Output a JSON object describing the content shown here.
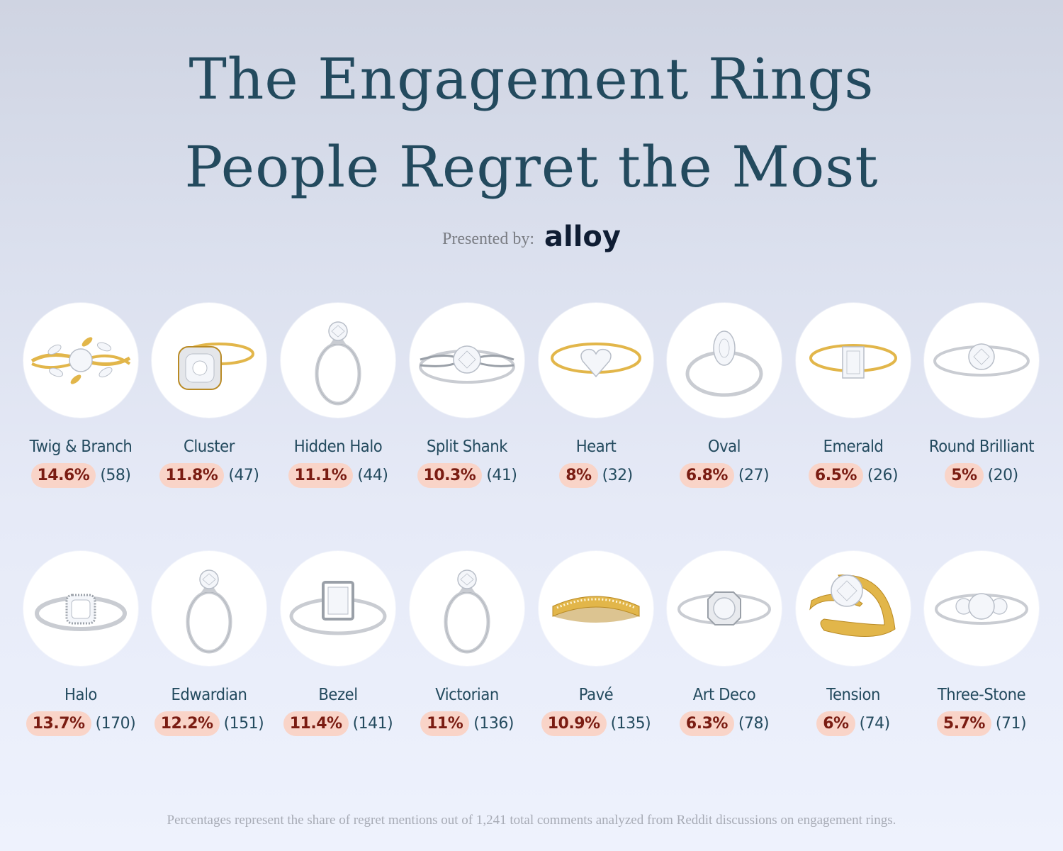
{
  "title": {
    "line1": "The Engagement Rings",
    "line2": "People Regret the Most"
  },
  "presented": {
    "label": "Presented by:",
    "brand": "alloy"
  },
  "colors": {
    "title": "#234a5e",
    "badge_bg": "#f9d4c8",
    "badge_text": "#7a1c12",
    "gold": "#e2b64a",
    "silver": "#c9ccd2"
  },
  "rows": [
    {
      "items": [
        {
          "name": "Twig & Branch",
          "percent": "14.6%",
          "count": "(58)",
          "metal": "gold",
          "style": "twig"
        },
        {
          "name": "Cluster",
          "percent": "11.8%",
          "count": "(47)",
          "metal": "gold",
          "style": "cluster"
        },
        {
          "name": "Hidden Halo",
          "percent": "11.1%",
          "count": "(44)",
          "metal": "silver",
          "style": "solitaire-upright"
        },
        {
          "name": "Split Shank",
          "percent": "10.3%",
          "count": "(41)",
          "metal": "silver",
          "style": "split"
        },
        {
          "name": "Heart",
          "percent": "8%",
          "count": "(32)",
          "metal": "gold",
          "style": "heart"
        },
        {
          "name": "Oval",
          "percent": "6.8%",
          "count": "(27)",
          "metal": "silver",
          "style": "oval"
        },
        {
          "name": "Emerald",
          "percent": "6.5%",
          "count": "(26)",
          "metal": "gold",
          "style": "emerald"
        },
        {
          "name": "Round Brilliant",
          "percent": "5%",
          "count": "(20)",
          "metal": "silver",
          "style": "round"
        }
      ]
    },
    {
      "items": [
        {
          "name": "Halo",
          "percent": "13.7%",
          "count": "(170)",
          "metal": "silver",
          "style": "halo"
        },
        {
          "name": "Edwardian",
          "percent": "12.2%",
          "count": "(151)",
          "metal": "silver",
          "style": "solitaire-upright"
        },
        {
          "name": "Bezel",
          "percent": "11.4%",
          "count": "(141)",
          "metal": "silver",
          "style": "bezel"
        },
        {
          "name": "Victorian",
          "percent": "11%",
          "count": "(136)",
          "metal": "silver",
          "style": "solitaire-upright"
        },
        {
          "name": "Pavé",
          "percent": "10.9%",
          "count": "(135)",
          "metal": "gold",
          "style": "pave"
        },
        {
          "name": "Art Deco",
          "percent": "6.3%",
          "count": "(78)",
          "metal": "silver",
          "style": "deco"
        },
        {
          "name": "Tension",
          "percent": "6%",
          "count": "(74)",
          "metal": "gold",
          "style": "tension"
        },
        {
          "name": "Three-Stone",
          "percent": "5.7%",
          "count": "(71)",
          "metal": "silver",
          "style": "three"
        }
      ]
    }
  ],
  "footnote": "Percentages represent the share of regret mentions out of 1,241 total comments analyzed from Reddit discussions on engagement rings."
}
